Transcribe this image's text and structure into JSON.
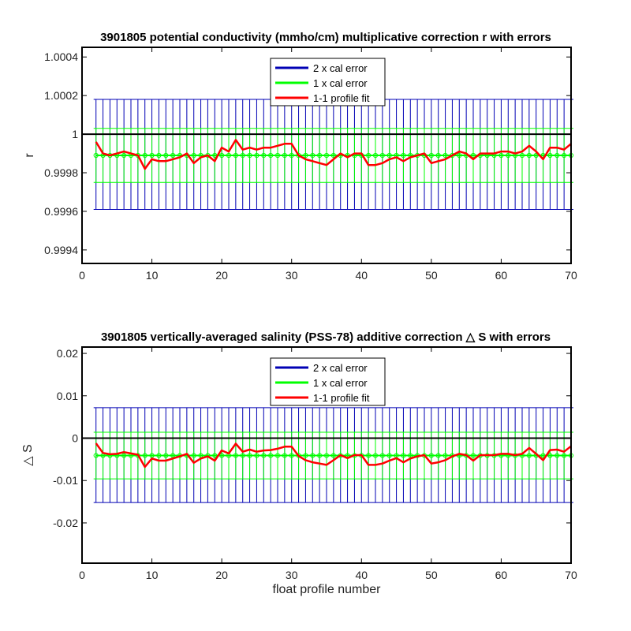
{
  "colors": {
    "two_sigma": "#0000b4",
    "one_sigma": "#00ff00",
    "fit": "#ff0000",
    "zero_line": "#000000",
    "axes": "#000000"
  },
  "xlabel": "float profile number",
  "chart_data": [
    {
      "type": "line",
      "title": "3901805 potential conductivity (mmho/cm) multiplicative correction r with errors",
      "ylabel": "r",
      "xlim": [
        0,
        70
      ],
      "ylim": [
        0.99933,
        1.00045
      ],
      "xticks": [
        0,
        10,
        20,
        30,
        40,
        50,
        60,
        70
      ],
      "xtick_labels": [
        "0",
        "10",
        "20",
        "30",
        "40",
        "50",
        "60",
        "70"
      ],
      "yticks": [
        0.9994,
        0.9996,
        0.9998,
        1.0,
        1.0002,
        1.0004
      ],
      "ytick_labels": [
        "0.9994",
        "0.9996",
        "0.9998",
        "1",
        "1.0002",
        "1.0004"
      ],
      "legend": {
        "position": "top-center",
        "entries": [
          "2 x cal error",
          "1 x cal error",
          "1-1 profile fit"
        ]
      },
      "grid": false,
      "reference_line": 1.0,
      "mapped_value": 0.99989,
      "two_sigma_band": [
        0.99961,
        1.00018
      ],
      "one_sigma_band": [
        0.99975,
        1.00003
      ],
      "series": [
        {
          "name": "1-1 profile fit",
          "x": [
            2,
            3,
            4,
            5,
            6,
            7,
            8,
            9,
            10,
            11,
            12,
            13,
            14,
            15,
            16,
            17,
            18,
            19,
            20,
            21,
            22,
            23,
            24,
            25,
            26,
            27,
            28,
            29,
            30,
            31,
            32,
            33,
            34,
            35,
            36,
            37,
            38,
            39,
            40,
            41,
            42,
            43,
            44,
            45,
            46,
            47,
            48,
            49,
            50,
            51,
            52,
            53,
            54,
            55,
            56,
            57,
            58,
            59,
            60,
            61,
            62,
            63,
            64,
            65,
            66,
            67,
            68,
            69,
            70
          ],
          "y": [
            0.99996,
            0.9999,
            0.99989,
            0.9999,
            0.99991,
            0.9999,
            0.99989,
            0.99982,
            0.99987,
            0.99986,
            0.99986,
            0.99987,
            0.99988,
            0.9999,
            0.99985,
            0.99988,
            0.99989,
            0.99986,
            0.99993,
            0.99991,
            0.99997,
            0.99992,
            0.99993,
            0.99992,
            0.99993,
            0.99993,
            0.99994,
            0.99995,
            0.99995,
            0.99989,
            0.99987,
            0.99986,
            0.99985,
            0.99984,
            0.99987,
            0.9999,
            0.99988,
            0.9999,
            0.9999,
            0.99984,
            0.99984,
            0.99985,
            0.99987,
            0.99988,
            0.99986,
            0.99988,
            0.99989,
            0.9999,
            0.99985,
            0.99986,
            0.99987,
            0.99989,
            0.99991,
            0.9999,
            0.99987,
            0.9999,
            0.9999,
            0.9999,
            0.99991,
            0.99991,
            0.9999,
            0.99991,
            0.99994,
            0.99991,
            0.99987,
            0.99993,
            0.99993,
            0.99992,
            0.99995
          ]
        }
      ]
    },
    {
      "type": "line",
      "title": "3901805 vertically-averaged salinity (PSS-78) additive correction △ S with errors",
      "ylabel": "△ S",
      "xlim": [
        0,
        70
      ],
      "ylim": [
        -0.0295,
        0.0215
      ],
      "xticks": [
        0,
        10,
        20,
        30,
        40,
        50,
        60,
        70
      ],
      "xtick_labels": [
        "0",
        "10",
        "20",
        "30",
        "40",
        "50",
        "60",
        "70"
      ],
      "yticks": [
        -0.02,
        -0.01,
        0.0,
        0.01,
        0.02
      ],
      "ytick_labels": [
        "-0.02",
        "-0.01",
        "0",
        "0.01",
        "0.02"
      ],
      "legend": {
        "position": "top-center",
        "entries": [
          "2 x cal error",
          "1 x cal error",
          "1-1 profile fit"
        ]
      },
      "grid": false,
      "reference_line": 0.0,
      "mapped_value": -0.0041,
      "two_sigma_band": [
        -0.0152,
        0.0072
      ],
      "one_sigma_band": [
        -0.0096,
        0.0014
      ],
      "series": [
        {
          "name": "1-1 profile fit",
          "x": [
            2,
            3,
            4,
            5,
            6,
            7,
            8,
            9,
            10,
            11,
            12,
            13,
            14,
            15,
            16,
            17,
            18,
            19,
            20,
            21,
            22,
            23,
            24,
            25,
            26,
            27,
            28,
            29,
            30,
            31,
            32,
            33,
            34,
            35,
            36,
            37,
            38,
            39,
            40,
            41,
            42,
            43,
            44,
            45,
            46,
            47,
            48,
            49,
            50,
            51,
            52,
            53,
            54,
            55,
            56,
            57,
            58,
            59,
            60,
            61,
            62,
            63,
            64,
            65,
            66,
            67,
            68,
            69,
            70
          ],
          "y": [
            -0.0012,
            -0.0035,
            -0.0038,
            -0.0037,
            -0.0033,
            -0.0036,
            -0.0039,
            -0.0068,
            -0.0048,
            -0.0053,
            -0.0053,
            -0.0048,
            -0.0043,
            -0.0037,
            -0.0058,
            -0.0048,
            -0.0043,
            -0.0053,
            -0.0029,
            -0.0036,
            -0.0013,
            -0.0032,
            -0.0027,
            -0.0032,
            -0.0029,
            -0.0028,
            -0.0025,
            -0.002,
            -0.002,
            -0.0042,
            -0.0052,
            -0.0057,
            -0.006,
            -0.0063,
            -0.0052,
            -0.004,
            -0.0047,
            -0.004,
            -0.004,
            -0.0063,
            -0.0063,
            -0.006,
            -0.0053,
            -0.0047,
            -0.0057,
            -0.0048,
            -0.0043,
            -0.004,
            -0.006,
            -0.0057,
            -0.0052,
            -0.0043,
            -0.0037,
            -0.004,
            -0.0053,
            -0.004,
            -0.004,
            -0.004,
            -0.0037,
            -0.0037,
            -0.004,
            -0.0037,
            -0.0023,
            -0.0037,
            -0.0052,
            -0.0028,
            -0.0027,
            -0.0032,
            -0.0019
          ]
        }
      ]
    }
  ]
}
